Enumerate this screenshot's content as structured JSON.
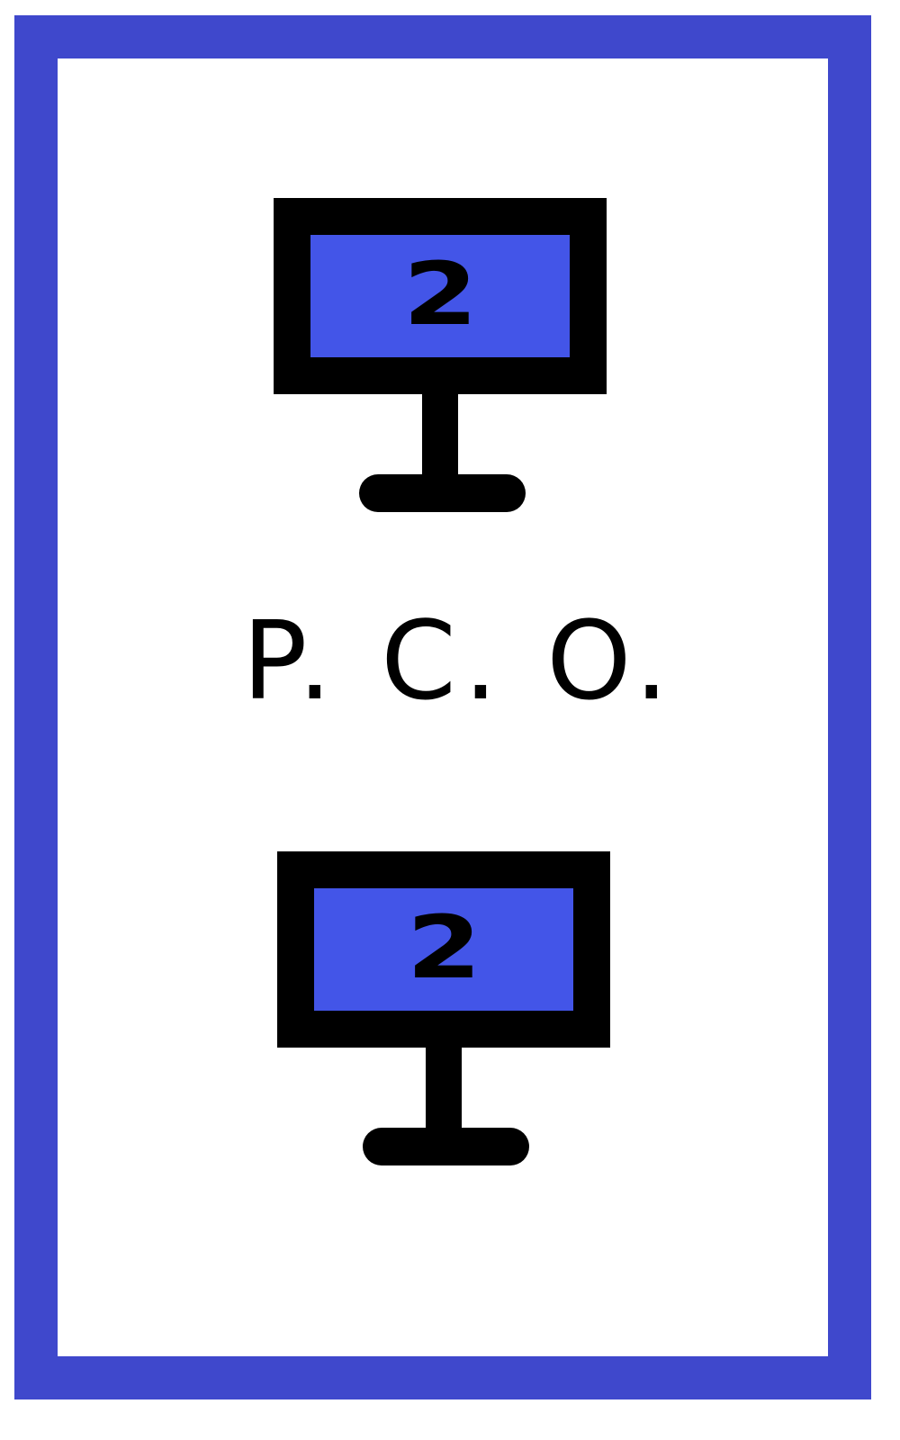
{
  "card": {
    "border_color": "#3f48cc",
    "sign_color": "#4355e8"
  },
  "top_sign": {
    "number": "2",
    "icon": "sign-post-icon"
  },
  "label": {
    "text": "P. C. O."
  },
  "bottom_sign": {
    "number": "2",
    "icon": "sign-post-icon"
  }
}
